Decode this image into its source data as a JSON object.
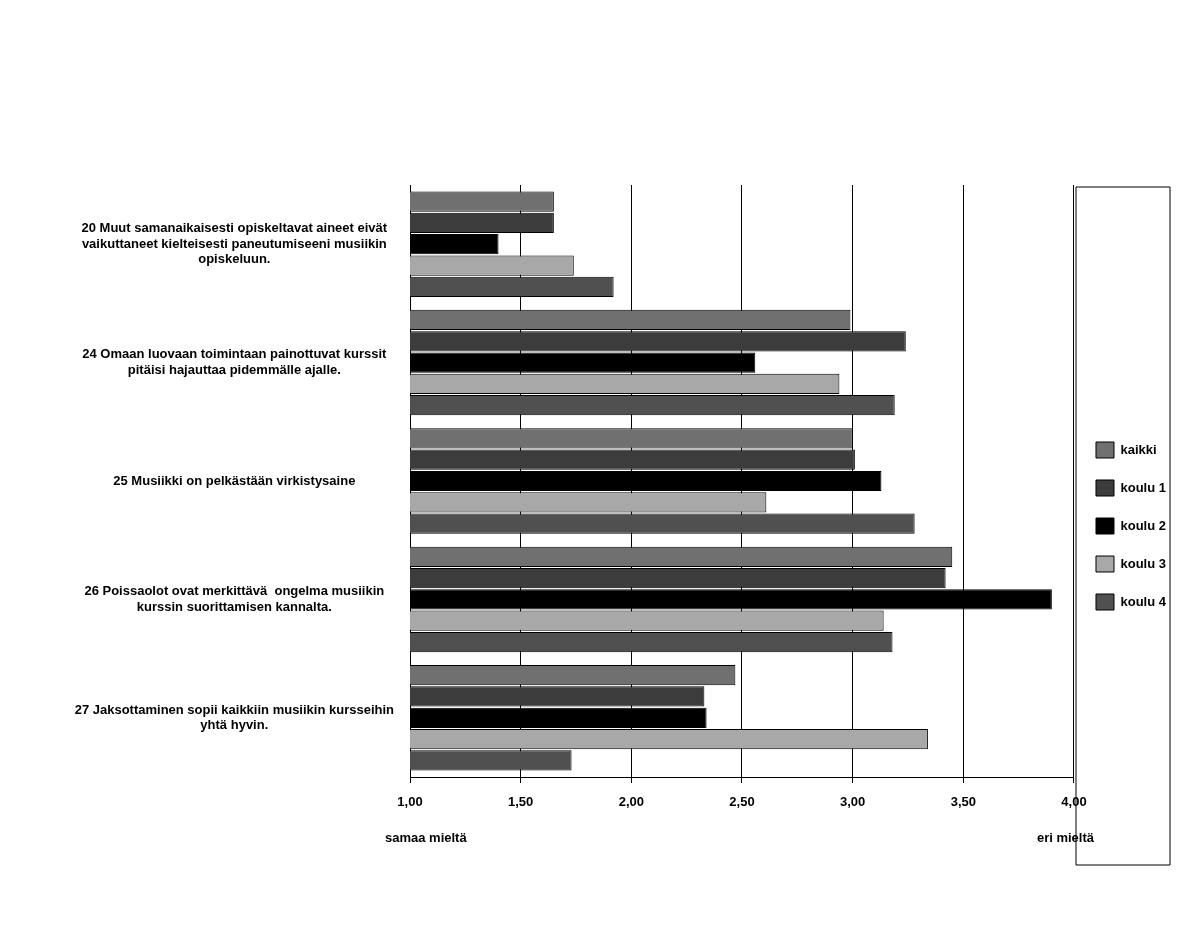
{
  "chart_data": {
    "type": "bar",
    "orientation": "horizontal",
    "categories": [
      "20 Muut samanaikaisesti opiskeltavat aineet eivät vaikuttaneet kielteisesti paneutumiseeni musiikin opiskeluun.",
      "24 Omaan luovaan toimintaan painottuvat kurssit pitäisi hajauttaa pidemmälle ajalle.",
      "25 Musiikki on pelkästään virkistysaine",
      "26 Poissaolot ovat merkittävä  ongelma musiikin kurssin suorittamisen kannalta.",
      "27 Jaksottaminen sopii kaikkiin musiikin kursseihin yhtä hyvin."
    ],
    "series": [
      {
        "name": "kaikki",
        "color": "#707070",
        "values": [
          1.65,
          2.99,
          3.0,
          3.45,
          2.47
        ]
      },
      {
        "name": "koulu 1",
        "color": "#3c3c3c",
        "values": [
          1.65,
          3.24,
          3.01,
          3.42,
          2.33
        ]
      },
      {
        "name": "koulu 2",
        "color": "#000000",
        "values": [
          1.4,
          2.56,
          3.13,
          3.9,
          2.34
        ]
      },
      {
        "name": "koulu 3",
        "color": "#a8a8a8",
        "values": [
          1.74,
          2.94,
          2.61,
          3.14,
          3.34
        ]
      },
      {
        "name": "koulu 4",
        "color": "#505050",
        "values": [
          1.92,
          3.19,
          3.28,
          3.18,
          1.73
        ]
      }
    ],
    "xlim": [
      1,
      4
    ],
    "xticks": [
      {
        "value": 1,
        "label": "1,00"
      },
      {
        "value": 1.5,
        "label": "1,50"
      },
      {
        "value": 2,
        "label": "2,00"
      },
      {
        "value": 2.5,
        "label": "2,50"
      },
      {
        "value": 3,
        "label": "3,00"
      },
      {
        "value": 3.5,
        "label": "3,50"
      },
      {
        "value": 4,
        "label": "4,00"
      }
    ],
    "grid": "x",
    "legend": "right",
    "annotations": [
      "samaa mieltä",
      "eri mieltä"
    ]
  }
}
